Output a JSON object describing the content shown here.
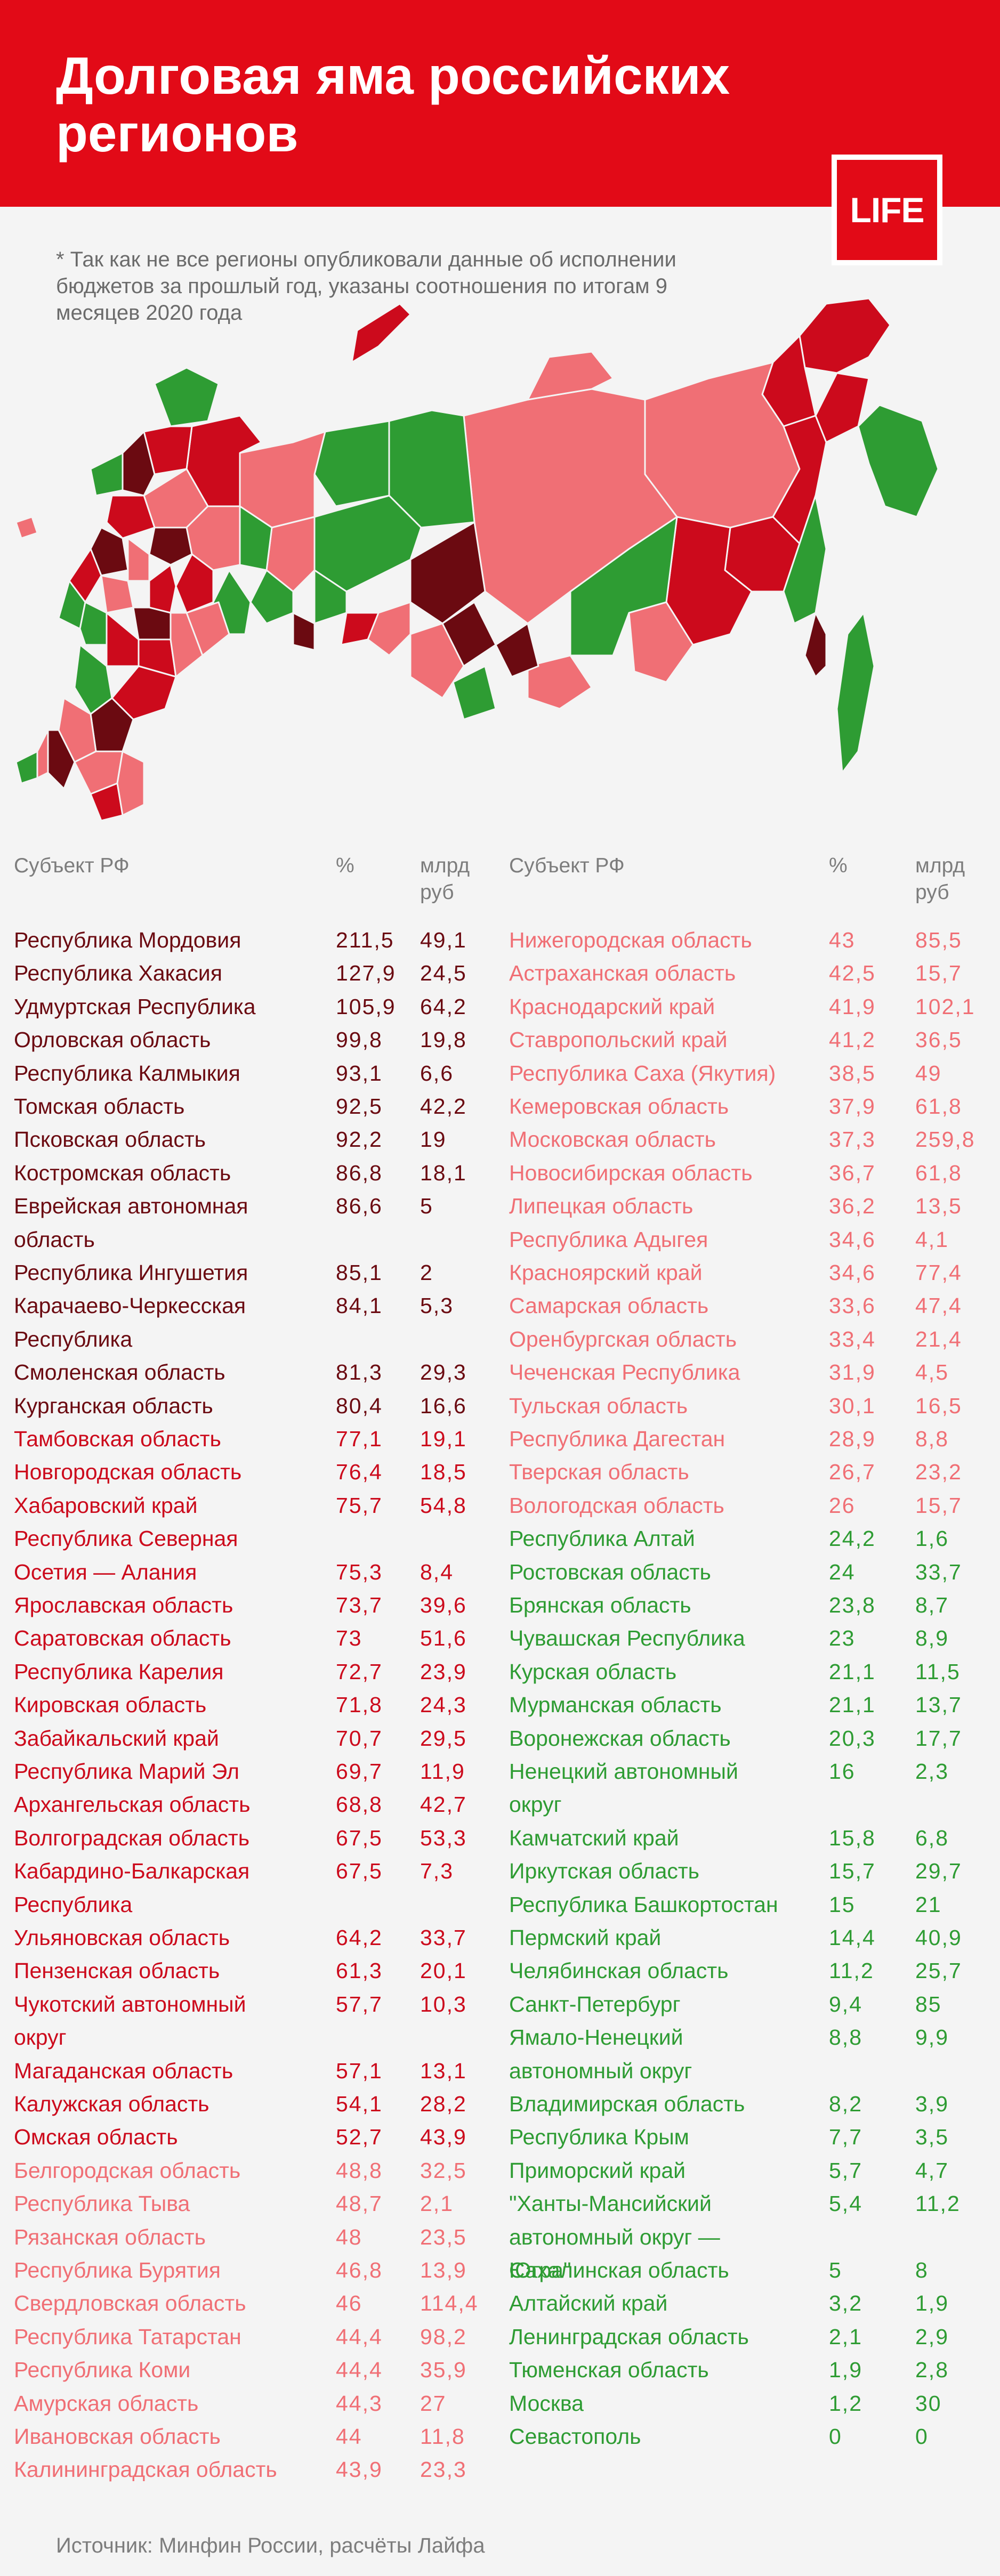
{
  "header": {
    "title": "Долговая яма российских регионов",
    "logo": "LIFE"
  },
  "note": "* Так как не все регионы опубликовали данные об исполнении бюджетов за прошлый год, указаны соотношения по итогам 9 месяцев 2020 года",
  "table_headers": {
    "subject": "Субъект РФ",
    "percent": "%",
    "billion": "млрд руб"
  },
  "source": "Источник: Минфин России, расчёты Лайфа",
  "colors": {
    "background": "#f4f4f4",
    "header_red": "#e20a17",
    "dark_red": "#6b0a11",
    "red": "#cc0a1c",
    "salmon": "#f06f75",
    "green": "#2e9c33"
  },
  "chart_data": {
    "type": "table",
    "title": "Долговая яма российских регионов",
    "columns": [
      "Субъект РФ",
      "%",
      "млрд руб"
    ],
    "rows": [
      {
        "name": "Республика Мордовия",
        "pct": "211,5",
        "bln": "49,1",
        "group": 1
      },
      {
        "name": "Республика Хакасия",
        "pct": "127,9",
        "bln": "24,5",
        "group": 1
      },
      {
        "name": "Удмуртская Республика",
        "pct": "105,9",
        "bln": "64,2",
        "group": 1
      },
      {
        "name": "Орловская область",
        "pct": "99,8",
        "bln": "19,8",
        "group": 1
      },
      {
        "name": "Республика Калмыкия",
        "pct": "93,1",
        "bln": "6,6",
        "group": 1
      },
      {
        "name": "Томская область",
        "pct": "92,5",
        "bln": "42,2",
        "group": 1
      },
      {
        "name": "Псковская область",
        "pct": "92,2",
        "bln": "19",
        "group": 1
      },
      {
        "name": "Костромская область",
        "pct": "86,8",
        "bln": "18,1",
        "group": 1
      },
      {
        "name": "Еврейская автономная область",
        "pct": "86,6",
        "bln": "5",
        "group": 1
      },
      {
        "name": "Республика Ингушетия",
        "pct": "85,1",
        "bln": "2",
        "group": 1
      },
      {
        "name": "Карачаево-Черкесская Республика",
        "pct": "84,1",
        "bln": "5,3",
        "group": 1
      },
      {
        "name": "Смоленская область",
        "pct": "81,3",
        "bln": "29,3",
        "group": 1
      },
      {
        "name": "Курганская область",
        "pct": "80,4",
        "bln": "16,6",
        "group": 1
      },
      {
        "name": "Тамбовская область",
        "pct": "77,1",
        "bln": "19,1",
        "group": 2
      },
      {
        "name": "Новгородская область",
        "pct": "76,4",
        "bln": "18,5",
        "group": 2
      },
      {
        "name": "Хабаровский край",
        "pct": "75,7",
        "bln": "54,8",
        "group": 2
      },
      {
        "name": "Республика Северная Осетия — Алания",
        "pct": "75,3",
        "bln": "8,4",
        "group": 2
      },
      {
        "name": "Ярославская область",
        "pct": "73,7",
        "bln": "39,6",
        "group": 2
      },
      {
        "name": "Саратовская область",
        "pct": "73",
        "bln": "51,6",
        "group": 2
      },
      {
        "name": "Республика Карелия",
        "pct": "72,7",
        "bln": "23,9",
        "group": 2
      },
      {
        "name": "Кировская область",
        "pct": "71,8",
        "bln": "24,3",
        "group": 2
      },
      {
        "name": "Забайкальский край",
        "pct": "70,7",
        "bln": "29,5",
        "group": 2
      },
      {
        "name": "Республика Марий Эл",
        "pct": "69,7",
        "bln": "11,9",
        "group": 2
      },
      {
        "name": "Архангельская область",
        "pct": "68,8",
        "bln": "42,7",
        "group": 2
      },
      {
        "name": "Волгоградская область",
        "pct": "67,5",
        "bln": "53,3",
        "group": 2
      },
      {
        "name": "Кабардино-Балкарская Республика",
        "pct": "67,5",
        "bln": "7,3",
        "group": 2
      },
      {
        "name": "Ульяновская область",
        "pct": "64,2",
        "bln": "33,7",
        "group": 2
      },
      {
        "name": "Пензенская область",
        "pct": "61,3",
        "bln": "20,1",
        "group": 2
      },
      {
        "name": "Чукотский автономный округ",
        "pct": "57,7",
        "bln": "10,3",
        "group": 2
      },
      {
        "name": "Магаданская область",
        "pct": "57,1",
        "bln": "13,1",
        "group": 2
      },
      {
        "name": "Калужская область",
        "pct": "54,1",
        "bln": "28,2",
        "group": 2
      },
      {
        "name": "Омская область",
        "pct": "52,7",
        "bln": "43,9",
        "group": 2
      },
      {
        "name": "Белгородская область",
        "pct": "48,8",
        "bln": "32,5",
        "group": 3
      },
      {
        "name": "Республика Тыва",
        "pct": "48,7",
        "bln": "2,1",
        "group": 3
      },
      {
        "name": "Рязанская область",
        "pct": "48",
        "bln": "23,5",
        "group": 3
      },
      {
        "name": "Республика Бурятия",
        "pct": "46,8",
        "bln": "13,9",
        "group": 3
      },
      {
        "name": "Свердловская область",
        "pct": "46",
        "bln": "114,4",
        "group": 3
      },
      {
        "name": "Республика Татарстан",
        "pct": "44,4",
        "bln": "98,2",
        "group": 3
      },
      {
        "name": "Республика Коми",
        "pct": "44,4",
        "bln": "35,9",
        "group": 3
      },
      {
        "name": "Амурская область",
        "pct": "44,3",
        "bln": "27",
        "group": 3
      },
      {
        "name": "Ивановская область",
        "pct": "44",
        "bln": "11,8",
        "group": 3
      },
      {
        "name": "Калининградская область",
        "pct": "43,9",
        "bln": "23,3",
        "group": 3
      },
      {
        "name": "Нижегородская область",
        "pct": "43",
        "bln": "85,5",
        "group": 3
      },
      {
        "name": "Астраханская область",
        "pct": "42,5",
        "bln": "15,7",
        "group": 3
      },
      {
        "name": "Краснодарский край",
        "pct": "41,9",
        "bln": "102,1",
        "group": 3
      },
      {
        "name": "Ставропольский край",
        "pct": "41,2",
        "bln": "36,5",
        "group": 3
      },
      {
        "name": "Республика Саха (Якутия)",
        "pct": "38,5",
        "bln": "49",
        "group": 3
      },
      {
        "name": "Кемеровская область",
        "pct": "37,9",
        "bln": "61,8",
        "group": 3
      },
      {
        "name": "Московская область",
        "pct": "37,3",
        "bln": "259,8",
        "group": 3
      },
      {
        "name": "Новосибирская область",
        "pct": "36,7",
        "bln": "61,8",
        "group": 3
      },
      {
        "name": "Липецкая область",
        "pct": "36,2",
        "bln": "13,5",
        "group": 3
      },
      {
        "name": "Республика Адыгея",
        "pct": "34,6",
        "bln": "4,1",
        "group": 3
      },
      {
        "name": "Красноярский край",
        "pct": "34,6",
        "bln": "77,4",
        "group": 3
      },
      {
        "name": "Самарская область",
        "pct": "33,6",
        "bln": "47,4",
        "group": 3
      },
      {
        "name": "Оренбургская область",
        "pct": "33,4",
        "bln": "21,4",
        "group": 3
      },
      {
        "name": "Чеченская Республика",
        "pct": "31,9",
        "bln": "4,5",
        "group": 3
      },
      {
        "name": "Тульская область",
        "pct": "30,1",
        "bln": "16,5",
        "group": 3
      },
      {
        "name": "Республика Дагестан",
        "pct": "28,9",
        "bln": "8,8",
        "group": 3
      },
      {
        "name": "Тверская область",
        "pct": "26,7",
        "bln": "23,2",
        "group": 3
      },
      {
        "name": "Вологодская область",
        "pct": "26",
        "bln": "15,7",
        "group": 3
      },
      {
        "name": "Республика Алтай",
        "pct": "24,2",
        "bln": "1,6",
        "group": 4
      },
      {
        "name": "Ростовская область",
        "pct": "24",
        "bln": "33,7",
        "group": 4
      },
      {
        "name": "Брянская область",
        "pct": "23,8",
        "bln": "8,7",
        "group": 4
      },
      {
        "name": "Чувашская Республика",
        "pct": "23",
        "bln": "8,9",
        "group": 4
      },
      {
        "name": "Курская область",
        "pct": "21,1",
        "bln": "11,5",
        "group": 4
      },
      {
        "name": "Мурманская область",
        "pct": "21,1",
        "bln": "13,7",
        "group": 4
      },
      {
        "name": "Воронежская область",
        "pct": "20,3",
        "bln": "17,7",
        "group": 4
      },
      {
        "name": "Ненецкий автономный округ",
        "pct": "16",
        "bln": "2,3",
        "group": 4
      },
      {
        "name": "Камчатский край",
        "pct": "15,8",
        "bln": "6,8",
        "group": 4
      },
      {
        "name": "Иркутская область",
        "pct": "15,7",
        "bln": "29,7",
        "group": 4
      },
      {
        "name": "Республика Башкортостан",
        "pct": "15",
        "bln": "21",
        "group": 4
      },
      {
        "name": "Пермский край",
        "pct": "14,4",
        "bln": "40,9",
        "group": 4
      },
      {
        "name": "Челябинская область",
        "pct": "11,2",
        "bln": "25,7",
        "group": 4
      },
      {
        "name": "Санкт-Петербург",
        "pct": "9,4",
        "bln": "85",
        "group": 4
      },
      {
        "name": "Ямало-Ненецкий автономный округ",
        "pct": "8,8",
        "bln": "9,9",
        "group": 4
      },
      {
        "name": "Владимирская область",
        "pct": "8,2",
        "bln": "3,9",
        "group": 4
      },
      {
        "name": "Республика Крым",
        "pct": "7,7",
        "bln": "3,5",
        "group": 4
      },
      {
        "name": "Приморский край",
        "pct": "5,7",
        "bln": "4,7",
        "group": 4
      },
      {
        "name": "\"Ханты-Мансийский автономный округ — Югра\"",
        "pct": "5,4",
        "bln": "11,2",
        "group": 4
      },
      {
        "name": "Сахалинская область",
        "pct": "5",
        "bln": "8",
        "group": 4
      },
      {
        "name": "Алтайский край",
        "pct": "3,2",
        "bln": "1,9",
        "group": 4
      },
      {
        "name": "Ленинградская область",
        "pct": "2,1",
        "bln": "2,9",
        "group": 4
      },
      {
        "name": "Тюменская область",
        "pct": "1,9",
        "bln": "2,8",
        "group": 4
      },
      {
        "name": "Москва",
        "pct": "1,2",
        "bln": "30",
        "group": 4
      },
      {
        "name": "Севастополь",
        "pct": "0",
        "bln": "0",
        "group": 4
      }
    ]
  }
}
